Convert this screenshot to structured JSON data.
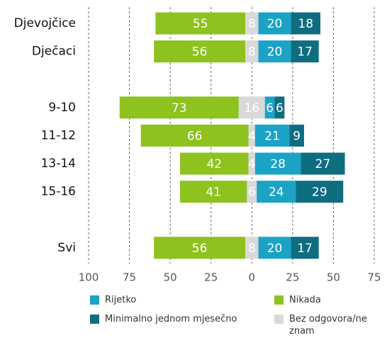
{
  "chart_data": {
    "type": "diverging-bar",
    "categories": [
      "Djevojčice",
      "Dječaci",
      null,
      "9-10",
      "11-12",
      "13-14",
      "15-16",
      null,
      "Svi"
    ],
    "series": [
      {
        "name": "Nikada",
        "color": "#8dc21f",
        "values": [
          55,
          56,
          null,
          73,
          66,
          42,
          41,
          null,
          56
        ]
      },
      {
        "name": "Bez odgovora/ne znam",
        "color": "#d9d9d9",
        "values": [
          8,
          8,
          null,
          16,
          4,
          4,
          6,
          null,
          8
        ]
      },
      {
        "name": "Rijetko",
        "color": "#1ba3c6",
        "values": [
          20,
          20,
          null,
          6,
          21,
          28,
          24,
          null,
          20
        ]
      },
      {
        "name": "Minimalno jednom mjesečno",
        "color": "#0f6d80",
        "values": [
          18,
          17,
          null,
          6,
          9,
          27,
          29,
          null,
          17
        ]
      }
    ],
    "xlim": [
      -100,
      75
    ],
    "xticks": [
      {
        "value": -100,
        "label": "100"
      },
      {
        "value": -75,
        "label": "75"
      },
      {
        "value": -50,
        "label": "50"
      },
      {
        "value": -25,
        "label": "25"
      },
      0,
      25,
      50,
      75
    ],
    "grid": true
  }
}
